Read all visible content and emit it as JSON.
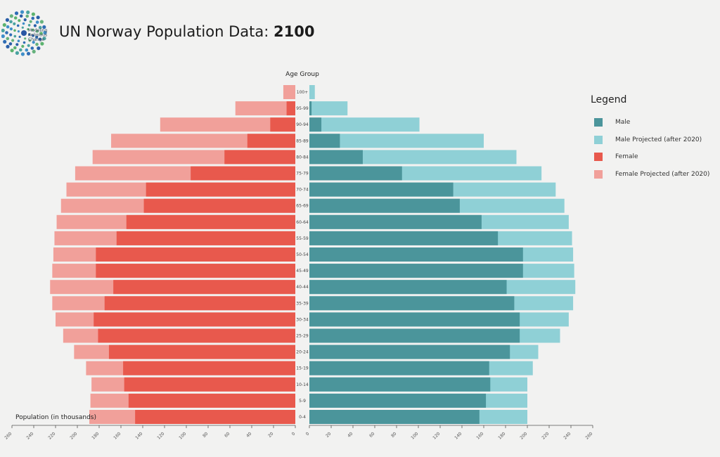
{
  "header": {
    "title": "UN Norway Population Data: ",
    "year": "2100",
    "logo_text": [
      "Modeling",
      "Religious",
      "Change"
    ]
  },
  "colors": {
    "male": "#4b959b",
    "male_projected": "#8fd0d6",
    "female": "#e8594d",
    "female_projected": "#f1a09a",
    "background": "#f2f2f1"
  },
  "legend": {
    "title": "Legend",
    "items": [
      {
        "label": "Male",
        "color": "#4b959b"
      },
      {
        "label": "Male Projected (after 2020)",
        "color": "#8fd0d6"
      },
      {
        "label": "Female",
        "color": "#e8594d"
      },
      {
        "label": "Female Projected (after 2020)",
        "color": "#f1a09a"
      }
    ]
  },
  "chart_data": {
    "type": "bar",
    "orientation": "horizontal-pyramid",
    "title": "UN Norway Population Data: 2100",
    "center_axis_label": "Age Group",
    "xlabel": "Population (in thousands)",
    "xlim": [
      0,
      260
    ],
    "left_ticks": [
      260,
      240,
      220,
      200,
      180,
      160,
      140,
      120,
      100,
      80,
      60,
      40,
      20,
      0
    ],
    "right_ticks": [
      0,
      20,
      40,
      60,
      80,
      100,
      120,
      140,
      160,
      180,
      200,
      220,
      240,
      260
    ],
    "categories": [
      "100+",
      "95-99",
      "90-94",
      "85-89",
      "80-84",
      "75-79",
      "70-74",
      "65-69",
      "60-64",
      "55-59",
      "50-54",
      "45-49",
      "40-44",
      "35-39",
      "30-34",
      "25-29",
      "20-24",
      "15-19",
      "10-14",
      "5-9",
      "0-4"
    ],
    "series": [
      {
        "name": "Male",
        "side": "right",
        "values": [
          0,
          2,
          11,
          28,
          49,
          85,
          132,
          138,
          158,
          173,
          196,
          196,
          181,
          188,
          193,
          193,
          184,
          165,
          166,
          162,
          156
        ]
      },
      {
        "name": "Male Projected (after 2020)",
        "side": "right",
        "values": [
          5,
          35,
          101,
          160,
          190,
          213,
          226,
          234,
          238,
          241,
          242,
          243,
          244,
          242,
          238,
          230,
          210,
          205,
          200,
          200,
          200
        ]
      },
      {
        "name": "Female",
        "side": "left",
        "values": [
          0,
          8,
          23,
          44,
          65,
          96,
          137,
          139,
          155,
          164,
          183,
          183,
          167,
          175,
          185,
          181,
          171,
          158,
          157,
          153,
          147
        ]
      },
      {
        "name": "Female Projected (after 2020)",
        "side": "left",
        "values": [
          11,
          55,
          124,
          169,
          186,
          202,
          210,
          215,
          219,
          221,
          222,
          223,
          225,
          223,
          220,
          213,
          203,
          192,
          187,
          188,
          189
        ]
      }
    ]
  }
}
